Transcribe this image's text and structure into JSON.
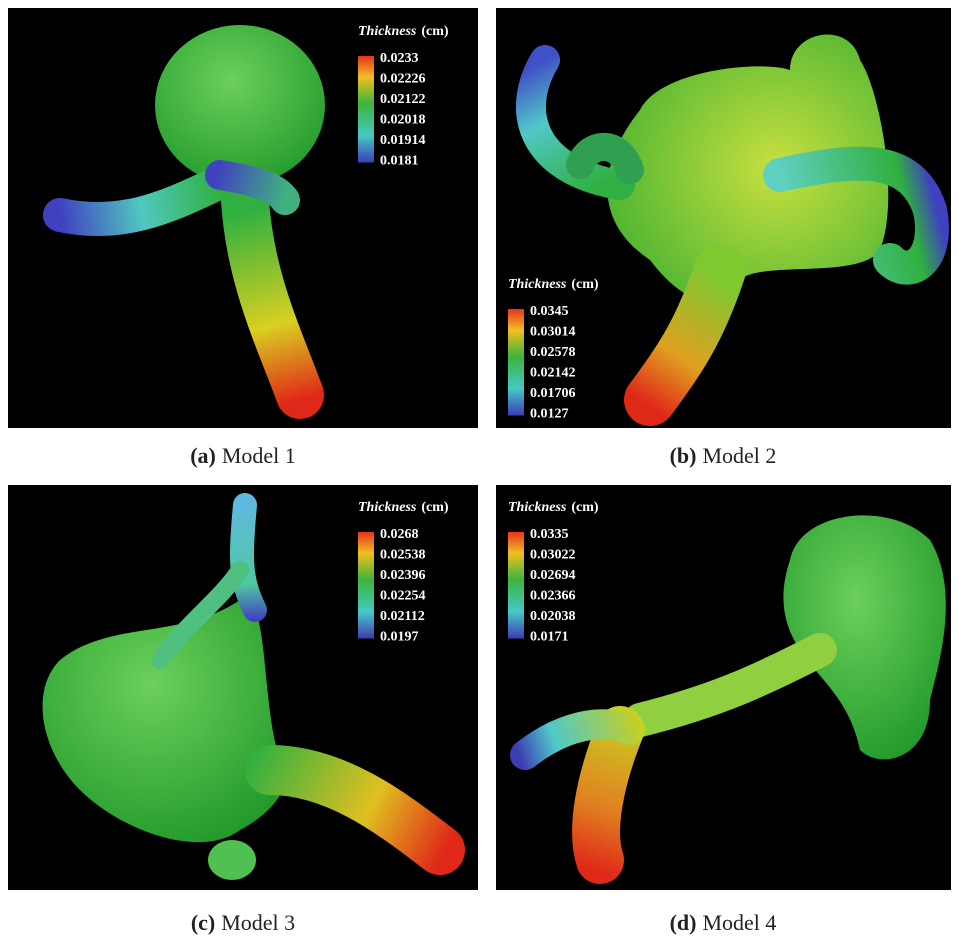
{
  "panels": [
    {
      "label": "(a)",
      "caption": "Model 1",
      "legend": {
        "title": "Thickness",
        "unit": "(cm)",
        "ticks": [
          "0.0233",
          "0.02226",
          "0.02122",
          "0.02018",
          "0.01914",
          "0.0181"
        ]
      }
    },
    {
      "label": "(b)",
      "caption": "Model 2",
      "legend": {
        "title": "Thickness",
        "unit": "(cm)",
        "ticks": [
          "0.0345",
          "0.03014",
          "0.02578",
          "0.02142",
          "0.01706",
          "0.0127"
        ]
      }
    },
    {
      "label": "(c)",
      "caption": "Model 3",
      "legend": {
        "title": "Thickness",
        "unit": "(cm)",
        "ticks": [
          "0.0268",
          "0.02538",
          "0.02396",
          "0.02254",
          "0.02112",
          "0.0197"
        ]
      }
    },
    {
      "label": "(d)",
      "caption": "Model 4",
      "legend": {
        "title": "Thickness",
        "unit": "(cm)",
        "ticks": [
          "0.0335",
          "0.03022",
          "0.02694",
          "0.02366",
          "0.02038",
          "0.0171"
        ]
      }
    }
  ]
}
